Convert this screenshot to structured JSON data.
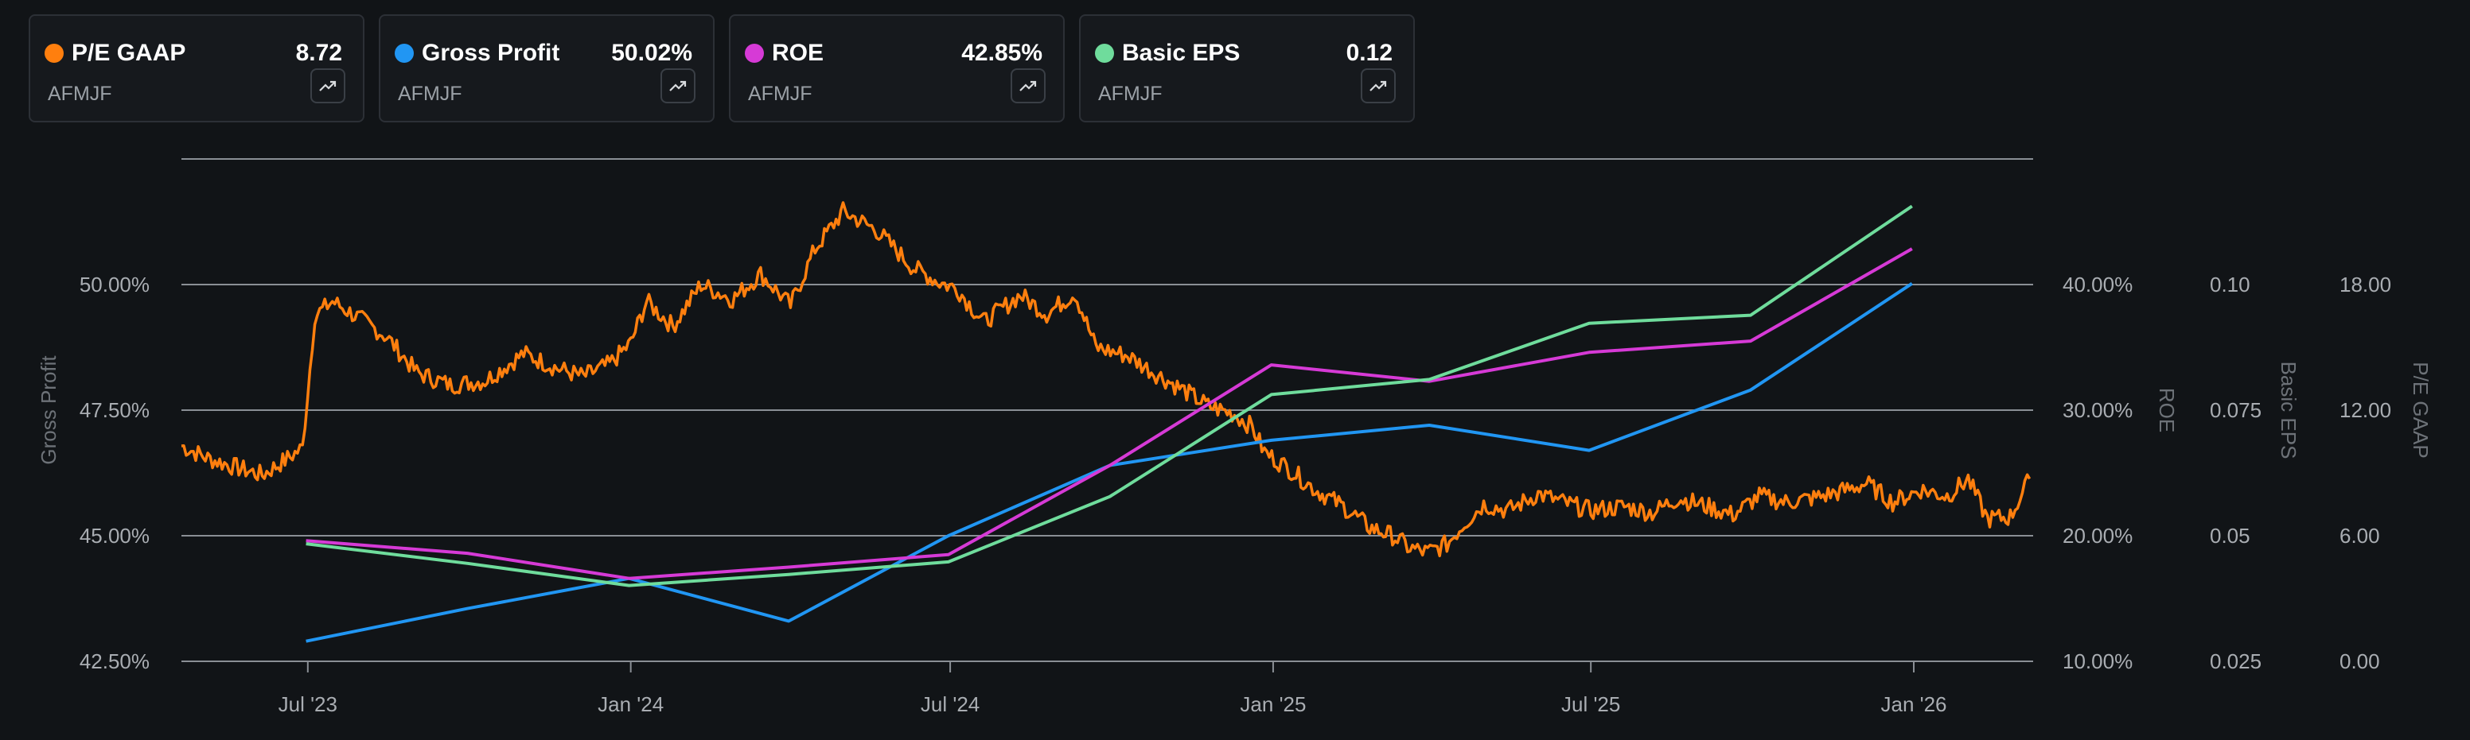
{
  "cards": [
    {
      "name": "P/E GAAP",
      "value": "8.72",
      "ticker": "AFMJF",
      "color": "#ff7f0e",
      "icon": "trend-up-icon"
    },
    {
      "name": "Gross Profit",
      "value": "50.02%",
      "ticker": "AFMJF",
      "color": "#2196f3",
      "icon": "trend-up-icon"
    },
    {
      "name": "ROE",
      "value": "42.85%",
      "ticker": "AFMJF",
      "color": "#d63ad6",
      "icon": "trend-up-icon"
    },
    {
      "name": "Basic EPS",
      "value": "0.12",
      "ticker": "AFMJF",
      "color": "#6fdc9c",
      "icon": "trend-up-icon"
    }
  ],
  "chart_data": {
    "type": "line",
    "grid": true,
    "legend": "top cards",
    "x_ticks": [
      {
        "label": "Jul '23",
        "date": "2023-07-01"
      },
      {
        "label": "Jan '24",
        "date": "2024-01-01"
      },
      {
        "label": "Jul '24",
        "date": "2024-07-01"
      },
      {
        "label": "Jan '25",
        "date": "2025-01-01"
      },
      {
        "label": "Jul '25",
        "date": "2025-07-01"
      },
      {
        "label": "Jan '26",
        "date": "2026-01-01"
      }
    ],
    "x_range": [
      "2023-04-20",
      "2026-03-10"
    ],
    "axes": [
      {
        "id": "gp",
        "title": "Gross Profit",
        "side": "left",
        "range": [
          42.5,
          52.5
        ],
        "ticks": [
          "42.50%",
          "45.00%",
          "47.50%",
          "50.00%"
        ],
        "tick_values": [
          42.5,
          45,
          47.5,
          50
        ]
      },
      {
        "id": "roe",
        "title": "ROE",
        "side": "right",
        "range": [
          10,
          50
        ],
        "ticks": [
          "10.00%",
          "20.00%",
          "30.00%",
          "40.00%"
        ],
        "tick_values": [
          10,
          20,
          30,
          40
        ]
      },
      {
        "id": "eps",
        "title": "Basic EPS",
        "side": "right",
        "range": [
          0.025,
          0.125
        ],
        "ticks": [
          "0.025",
          "0.05",
          "0.075",
          "0.10"
        ],
        "tick_values": [
          0.025,
          0.05,
          0.075,
          0.1
        ]
      },
      {
        "id": "pe",
        "title": "P/E GAAP",
        "side": "right",
        "range": [
          0,
          24
        ],
        "ticks": [
          "0.00",
          "6.00",
          "12.00",
          "18.00"
        ],
        "tick_values": [
          0,
          6,
          12,
          18
        ]
      }
    ],
    "series": [
      {
        "name": "Gross Profit",
        "axis": "gp",
        "color": "#2196f3",
        "points": [
          [
            "2023-06-30",
            42.9
          ],
          [
            "2023-09-30",
            43.55
          ],
          [
            "2023-12-31",
            44.15
          ],
          [
            "2024-03-31",
            43.3
          ],
          [
            "2024-06-30",
            45.0
          ],
          [
            "2024-09-30",
            46.4
          ],
          [
            "2024-12-31",
            46.9
          ],
          [
            "2025-03-31",
            47.2
          ],
          [
            "2025-06-30",
            46.7
          ],
          [
            "2025-09-30",
            47.9
          ],
          [
            "2025-12-31",
            50.02
          ]
        ]
      },
      {
        "name": "ROE",
        "axis": "roe",
        "color": "#d63ad6",
        "points": [
          [
            "2023-06-30",
            19.6
          ],
          [
            "2023-09-30",
            18.6
          ],
          [
            "2023-12-31",
            16.6
          ],
          [
            "2024-03-31",
            17.5
          ],
          [
            "2024-06-30",
            18.5
          ],
          [
            "2024-09-30",
            25.6
          ],
          [
            "2024-12-31",
            33.6
          ],
          [
            "2025-03-31",
            32.3
          ],
          [
            "2025-06-30",
            34.6
          ],
          [
            "2025-09-30",
            35.5
          ],
          [
            "2025-12-31",
            42.85
          ]
        ]
      },
      {
        "name": "Basic EPS",
        "axis": "eps",
        "color": "#6fdc9c",
        "points": [
          [
            "2023-06-30",
            0.0484
          ],
          [
            "2023-09-30",
            0.0445
          ],
          [
            "2023-12-31",
            0.0401
          ],
          [
            "2024-03-31",
            0.0423
          ],
          [
            "2024-06-30",
            0.0448
          ],
          [
            "2024-09-30",
            0.0578
          ],
          [
            "2024-12-31",
            0.0781
          ],
          [
            "2025-03-31",
            0.0811
          ],
          [
            "2025-06-30",
            0.0923
          ],
          [
            "2025-09-30",
            0.0939
          ],
          [
            "2025-12-31",
            0.1156
          ]
        ]
      },
      {
        "name": "P/E GAAP",
        "axis": "pe",
        "color": "#ff7f0e",
        "points": [
          [
            "2023-04-20",
            10.3
          ],
          [
            "2023-05-05",
            9.7
          ],
          [
            "2023-05-20",
            9.3
          ],
          [
            "2023-06-05",
            8.9
          ],
          [
            "2023-06-18",
            9.6
          ],
          [
            "2023-06-28",
            10.2
          ],
          [
            "2023-07-05",
            16.5
          ],
          [
            "2023-07-15",
            17.2
          ],
          [
            "2023-08-01",
            16.3
          ],
          [
            "2023-08-15",
            15.5
          ],
          [
            "2023-09-01",
            13.8
          ],
          [
            "2023-09-20",
            13.2
          ],
          [
            "2023-10-10",
            13.4
          ],
          [
            "2023-11-01",
            14.7
          ],
          [
            "2023-11-20",
            14.0
          ],
          [
            "2023-12-05",
            13.6
          ],
          [
            "2023-12-20",
            14.2
          ],
          [
            "2024-01-01",
            15.2
          ],
          [
            "2024-01-10",
            17.2
          ],
          [
            "2024-01-25",
            16.0
          ],
          [
            "2024-02-10",
            18.0
          ],
          [
            "2024-02-28",
            17.3
          ],
          [
            "2024-03-15",
            18.5
          ],
          [
            "2024-04-01",
            17.0
          ],
          [
            "2024-04-15",
            19.7
          ],
          [
            "2024-05-01",
            21.5
          ],
          [
            "2024-05-20",
            20.6
          ],
          [
            "2024-06-10",
            18.8
          ],
          [
            "2024-06-25",
            18.1
          ],
          [
            "2024-07-05",
            17.8
          ],
          [
            "2024-07-20",
            16.2
          ],
          [
            "2024-08-10",
            17.5
          ],
          [
            "2024-08-25",
            16.6
          ],
          [
            "2024-09-10",
            17.6
          ],
          [
            "2024-09-22",
            15.0
          ],
          [
            "2024-10-10",
            14.6
          ],
          [
            "2024-10-25",
            13.8
          ],
          [
            "2024-11-10",
            13.0
          ],
          [
            "2024-11-25",
            12.2
          ],
          [
            "2024-12-10",
            11.8
          ],
          [
            "2024-12-20",
            11.2
          ],
          [
            "2024-12-27",
            10.0
          ],
          [
            "2025-01-10",
            9.2
          ],
          [
            "2025-01-25",
            8.2
          ],
          [
            "2025-02-10",
            7.4
          ],
          [
            "2025-02-25",
            6.4
          ],
          [
            "2025-03-10",
            6.0
          ],
          [
            "2025-03-20",
            5.4
          ],
          [
            "2025-03-30",
            5.2
          ],
          [
            "2025-04-10",
            5.6
          ],
          [
            "2025-04-20",
            6.6
          ],
          [
            "2025-05-01",
            7.5
          ],
          [
            "2025-05-15",
            7.2
          ],
          [
            "2025-06-01",
            8.0
          ],
          [
            "2025-06-15",
            7.6
          ],
          [
            "2025-07-01",
            7.2
          ],
          [
            "2025-07-20",
            7.4
          ],
          [
            "2025-08-05",
            7.1
          ],
          [
            "2025-08-20",
            7.8
          ],
          [
            "2025-09-05",
            7.4
          ],
          [
            "2025-09-20",
            7.0
          ],
          [
            "2025-10-05",
            7.9
          ],
          [
            "2025-10-20",
            7.6
          ],
          [
            "2025-11-05",
            7.8
          ],
          [
            "2025-11-20",
            8.1
          ],
          [
            "2025-12-05",
            8.5
          ],
          [
            "2025-12-20",
            7.6
          ],
          [
            "2026-01-05",
            8.2
          ],
          [
            "2026-01-20",
            7.9
          ],
          [
            "2026-02-01",
            8.7
          ],
          [
            "2026-02-12",
            6.8
          ],
          [
            "2026-02-25",
            6.9
          ],
          [
            "2026-03-08",
            8.72
          ]
        ]
      }
    ]
  }
}
